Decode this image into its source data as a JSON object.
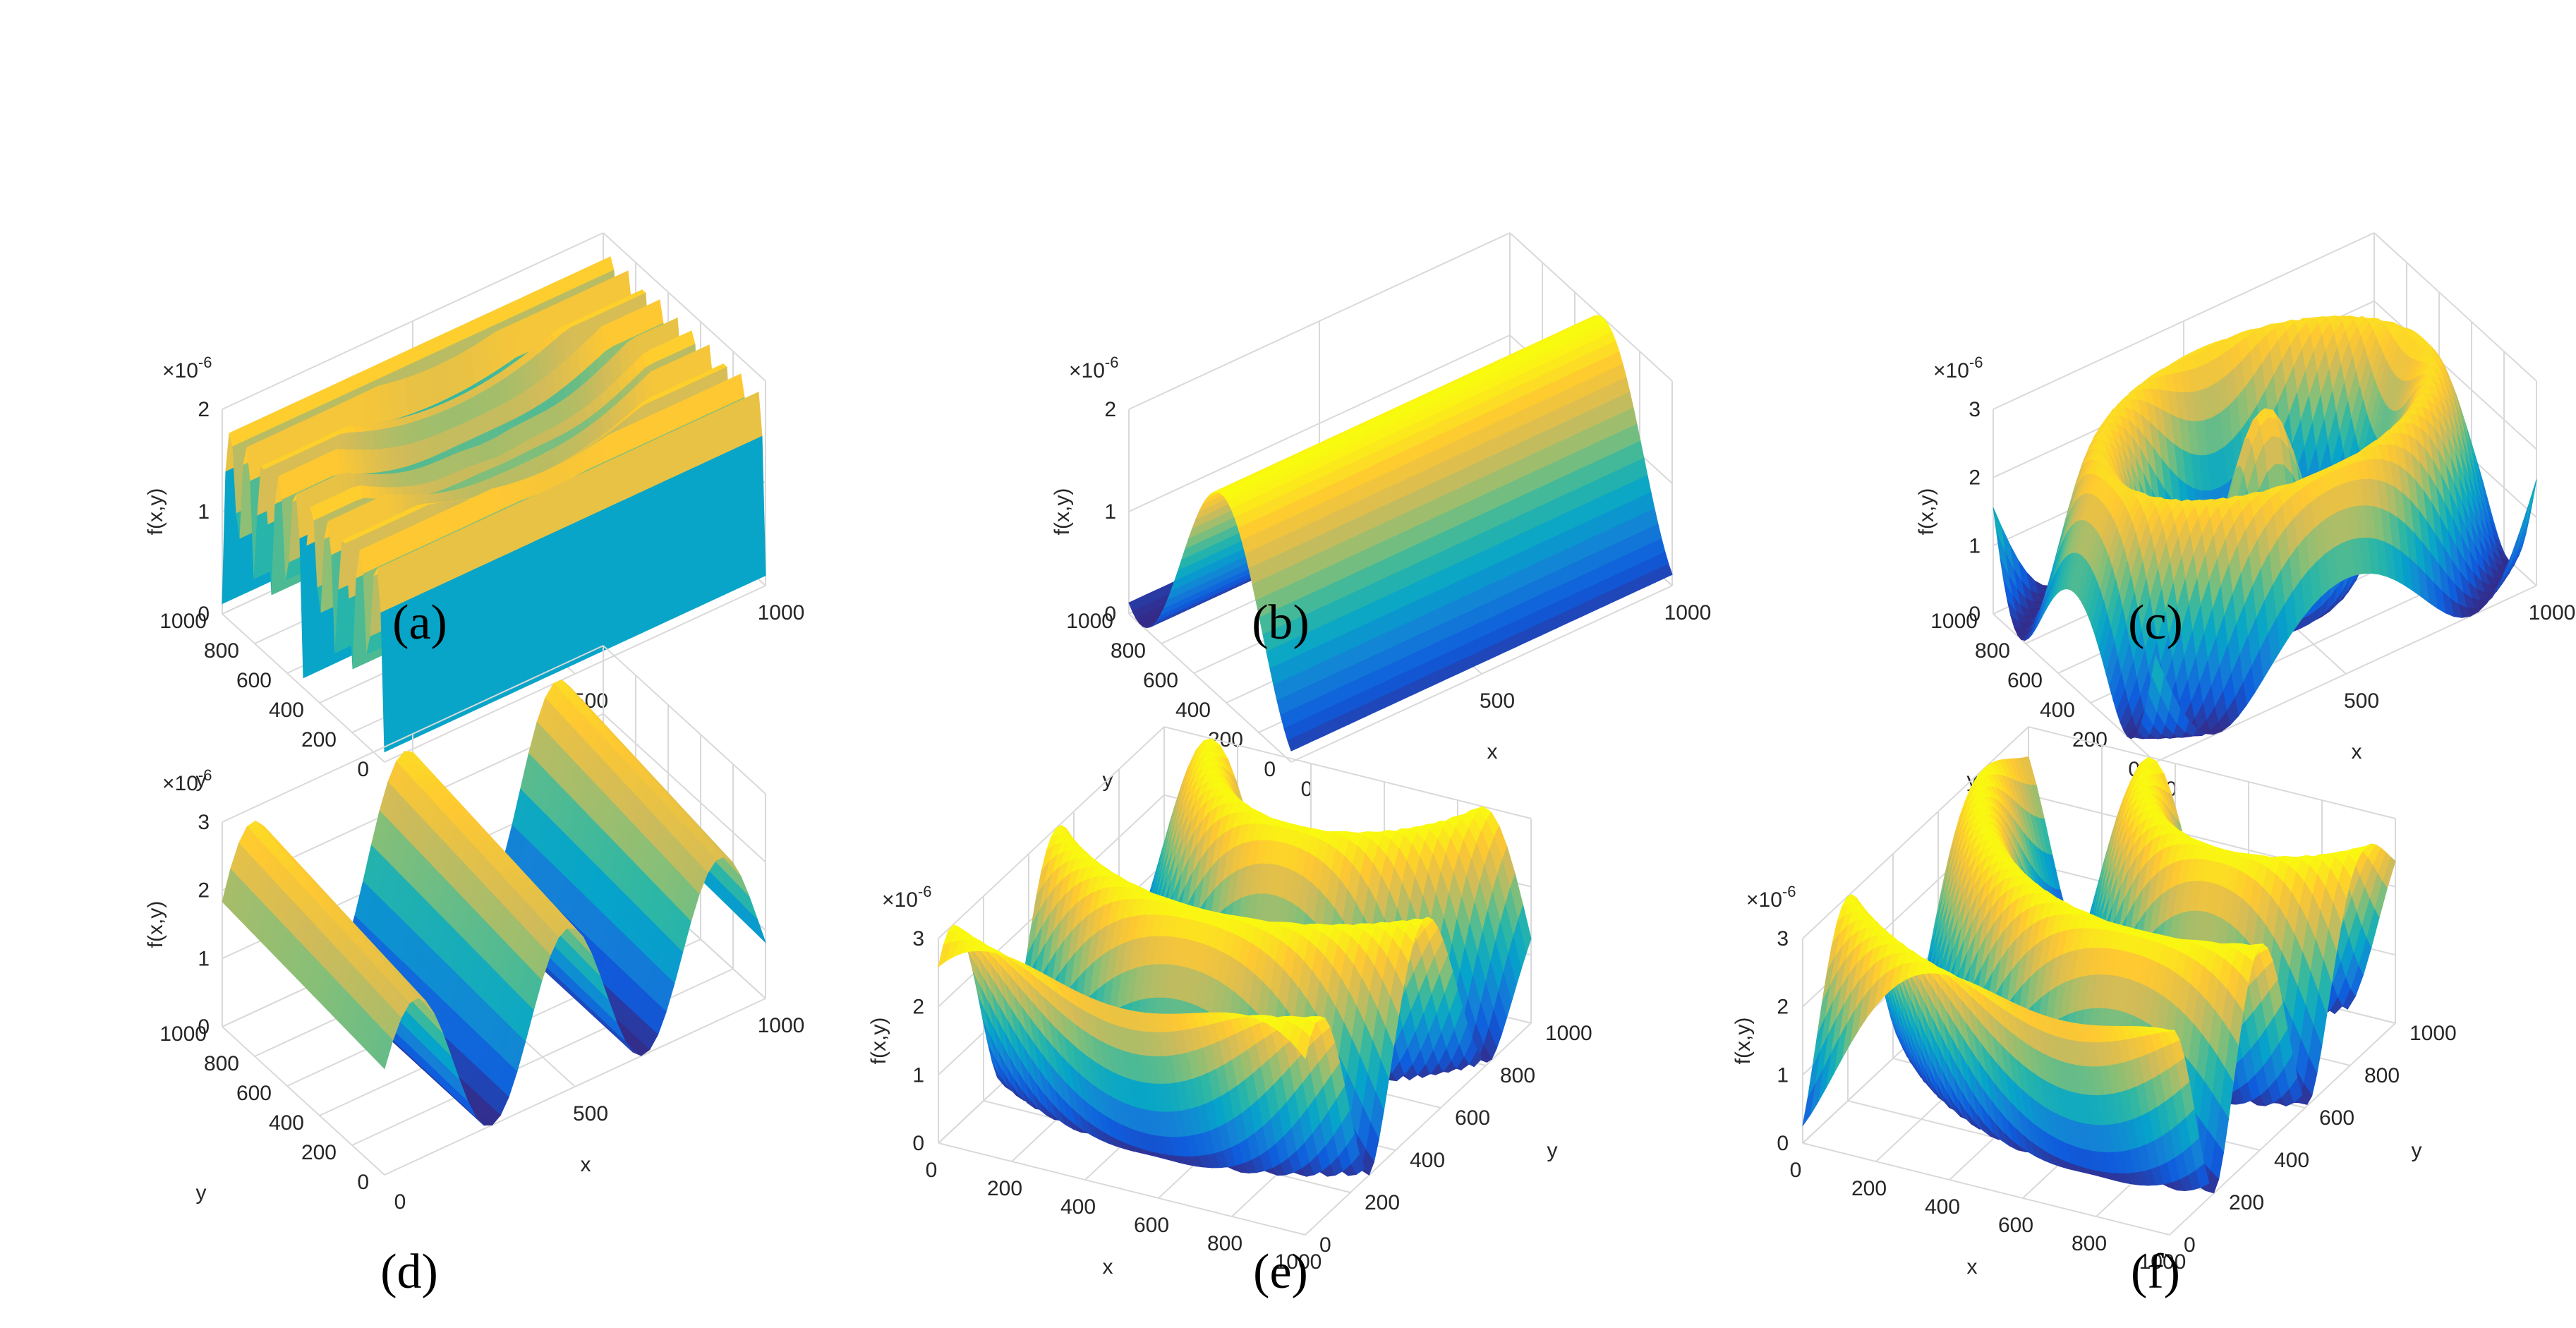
{
  "colormap": "parula",
  "colormap_stops": [
    "#352a87",
    "#0f5cdd",
    "#1481d6",
    "#06a4ca",
    "#2eb7a4",
    "#87bf77",
    "#d1bb59",
    "#fec832",
    "#f9fb0e"
  ],
  "grid_color": "#d9d9d9",
  "chart_data": [
    {
      "panel_label": "(a)",
      "type": "surface",
      "zlabel": "f(x,y)",
      "xlabel": "x",
      "ylabel": "y",
      "z_multiplier": "×10-6",
      "z_ticks": [
        "0",
        "1",
        "2"
      ],
      "zlim": [
        0,
        2
      ],
      "x_ticks": [
        "0",
        "500",
        "1000"
      ],
      "xlim": [
        0,
        1000
      ],
      "y_ticks": [
        "0",
        "200",
        "400",
        "600",
        "800",
        "1000"
      ],
      "ylim": [
        0,
        1000
      ],
      "view": "x-along-front-right",
      "surface": {
        "kind": "ridges_y",
        "ridge_count": 10,
        "peak": 1.85,
        "trough": 0.1,
        "center_bump": 1.0,
        "center": [
          500,
          500
        ]
      },
      "grid": "on"
    },
    {
      "panel_label": "(b)",
      "type": "surface",
      "zlabel": "f(x,y)",
      "xlabel": "x",
      "ylabel": "y",
      "z_multiplier": "×10-6",
      "z_ticks": [
        "0",
        "1",
        "2"
      ],
      "zlim": [
        0,
        2
      ],
      "x_ticks": [
        "0",
        "500",
        "1000"
      ],
      "xlim": [
        0,
        1000
      ],
      "y_ticks": [
        "0",
        "200",
        "400",
        "600",
        "800",
        "1000"
      ],
      "ylim": [
        0,
        1000
      ],
      "view": "x-along-front-right",
      "surface": {
        "kind": "cos_y",
        "cycles": 1,
        "peak": 2.0,
        "trough": 0.0
      },
      "grid": "on"
    },
    {
      "panel_label": "(c)",
      "type": "surface",
      "zlabel": "f(x,y)",
      "xlabel": "x",
      "ylabel": "y",
      "z_multiplier": "×10-6",
      "z_ticks": [
        "0",
        "1",
        "2",
        "3"
      ],
      "zlim": [
        0,
        3
      ],
      "x_ticks": [
        "0",
        "500",
        "1000"
      ],
      "xlim": [
        0,
        1000
      ],
      "y_ticks": [
        "0",
        "200",
        "400",
        "600",
        "800",
        "1000"
      ],
      "ylim": [
        0,
        1000
      ],
      "view": "x-along-front-right",
      "surface": {
        "kind": "radial",
        "center": [
          500,
          500
        ],
        "ring_radius": 400,
        "peak": 2.8,
        "trough": 0.0
      },
      "grid": "on"
    },
    {
      "panel_label": "(d)",
      "type": "surface",
      "zlabel": "f(x,y)",
      "xlabel": "x",
      "ylabel": "y",
      "z_multiplier": "×10-6",
      "z_ticks": [
        "0",
        "1",
        "2",
        "3"
      ],
      "zlim": [
        0,
        3
      ],
      "x_ticks": [
        "0",
        "500",
        "1000"
      ],
      "xlim": [
        0,
        1000
      ],
      "y_ticks": [
        "0",
        "200",
        "400",
        "600",
        "800",
        "1000"
      ],
      "ylim": [
        0,
        1000
      ],
      "view": "x-along-front-right",
      "surface": {
        "kind": "cos_x",
        "cycles": 2.5,
        "peak": 2.8,
        "trough": 0.0
      },
      "grid": "on"
    },
    {
      "panel_label": "(e)",
      "type": "surface",
      "zlabel": "f(x,y)",
      "xlabel": "x",
      "ylabel": "y",
      "z_multiplier": "×10-6",
      "z_ticks": [
        "0",
        "1",
        "2",
        "3"
      ],
      "zlim": [
        0,
        3
      ],
      "x_ticks": [
        "0",
        "200",
        "400",
        "600",
        "800",
        "1000"
      ],
      "xlim": [
        0,
        1000
      ],
      "y_ticks": [
        "0",
        "200",
        "400",
        "600",
        "800",
        "1000"
      ],
      "ylim": [
        0,
        1000
      ],
      "view": "x-along-front-left",
      "surface": {
        "kind": "rings_far",
        "center": [
          500,
          1150
        ],
        "wavelength": 400,
        "peak": 3.0,
        "trough": 0.0
      },
      "grid": "on"
    },
    {
      "panel_label": "(f)",
      "type": "surface",
      "zlabel": "f(x,y)",
      "xlabel": "x",
      "ylabel": "y",
      "z_multiplier": "×10-6",
      "z_ticks": [
        "0",
        "1",
        "2",
        "3"
      ],
      "zlim": [
        0,
        3
      ],
      "x_ticks": [
        "0",
        "200",
        "400",
        "600",
        "800",
        "1000"
      ],
      "xlim": [
        0,
        1000
      ],
      "y_ticks": [
        "0",
        "200",
        "400",
        "600",
        "800",
        "1000"
      ],
      "ylim": [
        0,
        1000
      ],
      "view": "x-along-front-left",
      "surface": {
        "kind": "rings_far",
        "center": [
          700,
          1100
        ],
        "wavelength": 380,
        "peak": 3.0,
        "trough": 0.0
      },
      "grid": "on"
    }
  ]
}
